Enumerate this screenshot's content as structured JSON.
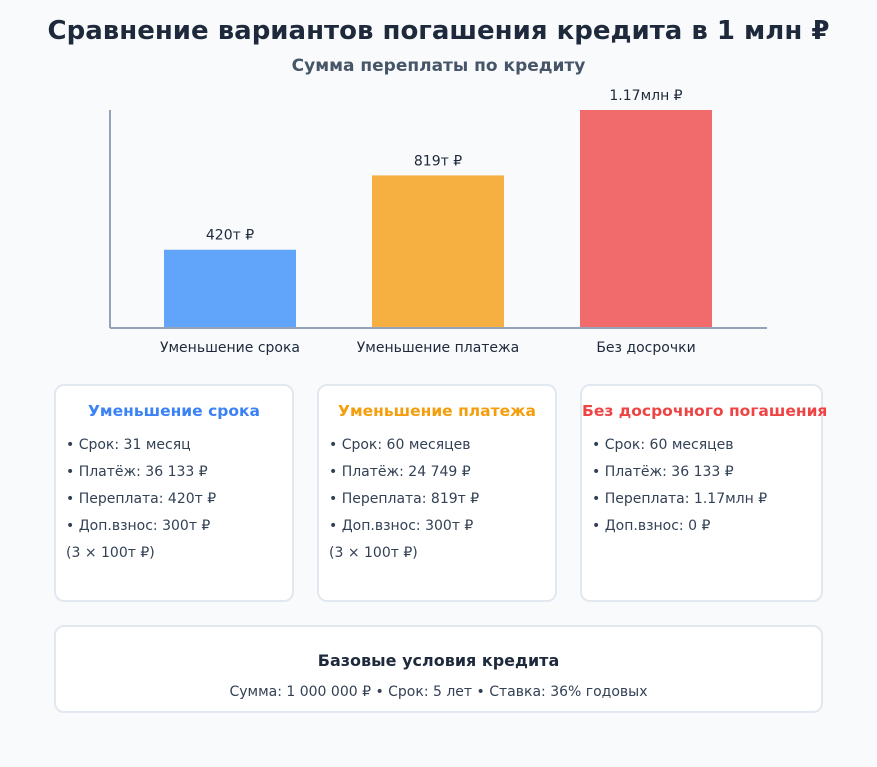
{
  "title": "Сравнение вариантов погашения кредита в 1 млн ₽",
  "chart_data": {
    "type": "bar",
    "title": "Сумма переплаты по кредиту",
    "categories": [
      "Уменьшение срока",
      "Уменьшение платежа",
      "Без досрочки"
    ],
    "values": [
      420,
      819,
      1170
    ],
    "data_labels": [
      "420т ₽",
      "819т ₽",
      "1.17млн ₽"
    ],
    "colors": [
      "#60a5fa",
      "#f5b041",
      "#f16a6c"
    ],
    "unit": "тыс. ₽",
    "ylim": [
      0,
      1170
    ],
    "grid": false,
    "legend": "none"
  },
  "cards": [
    {
      "title": "Уменьшение срока",
      "color": "#3b82f6",
      "items": [
        "• Срок: 31 месяц",
        "• Платёж: 36 133 ₽",
        "• Переплата: 420т ₽",
        "• Доп.взнос: 300т ₽"
      ],
      "note": "(3 × 100т ₽)"
    },
    {
      "title": "Уменьшение платежа",
      "color": "#f59e0b",
      "items": [
        "• Срок: 60 месяцев",
        "• Платёж: 24 749 ₽",
        "• Переплата: 819т ₽",
        "• Доп.взнос: 300т ₽"
      ],
      "note": "(3 × 100т ₽)"
    },
    {
      "title": "Без досрочного погашения",
      "color": "#ef4444",
      "items": [
        "• Срок: 60 месяцев",
        "• Платёж: 36 133 ₽",
        "• Переплата: 1.17млн ₽",
        "• Доп.взнос: 0 ₽"
      ],
      "note": ""
    }
  ],
  "base": {
    "title": "Базовые условия кредита",
    "text": "Сумма: 1 000 000 ₽ • Срок: 5 лет • Ставка: 36% годовых"
  }
}
